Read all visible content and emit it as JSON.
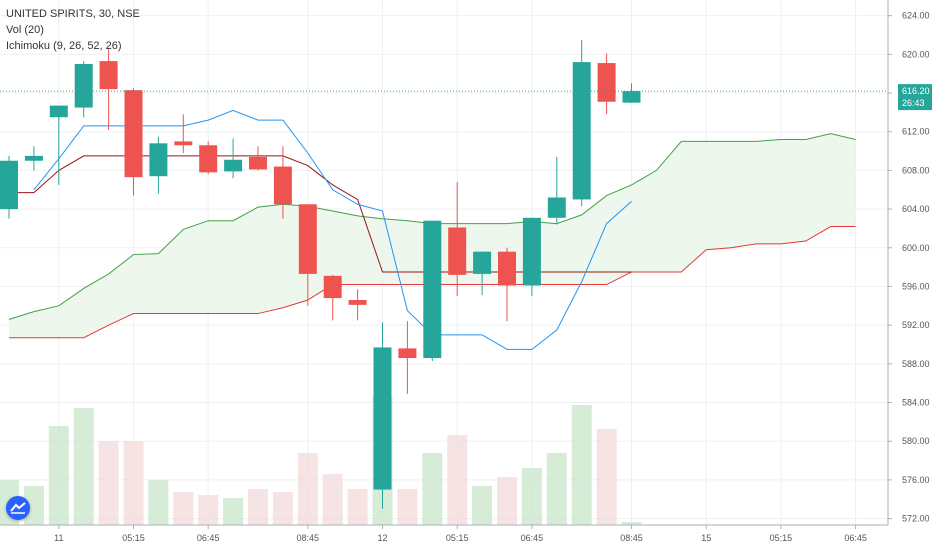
{
  "legend": {
    "symbol_line": "UNITED SPIRITS, 30, NSE",
    "vol_line": "Vol (20)",
    "ichimoku_line": "Ichimoku (9, 26, 52, 26)"
  },
  "icons": {
    "logo": "tradingview-logo-icon"
  },
  "colors": {
    "bull": "#26a69a",
    "bear": "#ef5350",
    "tenkan": "#2196f3",
    "kijun": "#991515",
    "spanA": "#43a047",
    "spanB": "#e53935",
    "cloud": "#e8f5e9",
    "current_price": "#26a69a"
  },
  "current_price": {
    "value": 616.2,
    "label": "616.20",
    "countdown": "26:43"
  },
  "chart_data": {
    "type": "candlestick",
    "title": "UNITED SPIRITS, 30, NSE",
    "ylim": [
      570.4,
      624.6
    ],
    "y_ticks": [
      "572.00",
      "576.00",
      "580.00",
      "584.00",
      "588.00",
      "592.00",
      "596.00",
      "600.00",
      "604.00",
      "608.00",
      "612.00",
      "616.00",
      "620.00",
      "624.00"
    ],
    "x_ticks": [
      {
        "label": "11",
        "bar": 2
      },
      {
        "label": "05:15",
        "bar": 5
      },
      {
        "label": "06:45",
        "bar": 8
      },
      {
        "label": "08:45",
        "bar": 12
      },
      {
        "label": "12",
        "bar": 15
      },
      {
        "label": "05:15",
        "bar": 18
      },
      {
        "label": "06:45",
        "bar": 21
      },
      {
        "label": "08:45",
        "bar": 25
      },
      {
        "label": "15",
        "bar": 28
      },
      {
        "label": "05:15",
        "bar": 31
      },
      {
        "label": "06:45",
        "bar": 34
      }
    ],
    "candles": [
      {
        "o": 604.0,
        "h": 609.5,
        "l": 603.0,
        "c": 609.0
      },
      {
        "o": 609.0,
        "h": 610.5,
        "l": 608.0,
        "c": 609.5
      },
      {
        "o": 613.5,
        "h": 614.7,
        "l": 606.5,
        "c": 614.7
      },
      {
        "o": 614.5,
        "h": 619.3,
        "l": 613.5,
        "c": 619.0
      },
      {
        "o": 619.3,
        "h": 620.7,
        "l": 612.2,
        "c": 616.4
      },
      {
        "o": 616.3,
        "h": 616.5,
        "l": 605.4,
        "c": 607.3
      },
      {
        "o": 607.4,
        "h": 611.5,
        "l": 605.6,
        "c": 610.8
      },
      {
        "o": 611.0,
        "h": 613.8,
        "l": 609.8,
        "c": 610.6
      },
      {
        "o": 610.6,
        "h": 611.0,
        "l": 607.6,
        "c": 607.8
      },
      {
        "o": 607.9,
        "h": 611.3,
        "l": 607.2,
        "c": 609.1
      },
      {
        "o": 609.4,
        "h": 610.5,
        "l": 608.0,
        "c": 608.1
      },
      {
        "o": 608.4,
        "h": 610.5,
        "l": 603.0,
        "c": 604.5
      },
      {
        "o": 604.5,
        "h": 604.5,
        "l": 594.0,
        "c": 597.3
      },
      {
        "o": 597.1,
        "h": 597.2,
        "l": 592.5,
        "c": 594.8
      },
      {
        "o": 594.6,
        "h": 595.7,
        "l": 592.5,
        "c": 594.1
      },
      {
        "o": 575.0,
        "h": 592.3,
        "l": 573.0,
        "c": 589.7
      },
      {
        "o": 589.6,
        "h": 592.4,
        "l": 584.9,
        "c": 588.6
      },
      {
        "o": 588.6,
        "h": 602.8,
        "l": 588.3,
        "c": 602.8
      },
      {
        "o": 602.1,
        "h": 606.8,
        "l": 595.0,
        "c": 597.2
      },
      {
        "o": 597.3,
        "h": 599.6,
        "l": 595.1,
        "c": 599.6
      },
      {
        "o": 599.6,
        "h": 600.0,
        "l": 592.4,
        "c": 596.1
      },
      {
        "o": 596.1,
        "h": 603.1,
        "l": 595.0,
        "c": 603.1
      },
      {
        "o": 603.1,
        "h": 609.4,
        "l": 602.4,
        "c": 605.2
      },
      {
        "o": 605.0,
        "h": 621.5,
        "l": 604.3,
        "c": 619.2
      },
      {
        "o": 619.1,
        "h": 620.1,
        "l": 613.8,
        "c": 615.1
      },
      {
        "o": 615.0,
        "h": 617.0,
        "l": 615.0,
        "c": 616.2
      }
    ],
    "volume": [
      15,
      13,
      33,
      39,
      28,
      28,
      15,
      11,
      10,
      9,
      12,
      11,
      24,
      17,
      12,
      43,
      12,
      24,
      30,
      13,
      16,
      19,
      24,
      40,
      32,
      1
    ],
    "ichimoku": {
      "tenkan": [
        [
          1,
          606.0
        ],
        [
          2,
          609.2
        ],
        [
          3,
          612.6
        ],
        [
          4,
          612.6
        ],
        [
          5,
          612.6
        ],
        [
          6,
          612.6
        ],
        [
          7,
          612.6
        ],
        [
          8,
          613.2
        ],
        [
          9,
          614.2
        ],
        [
          10,
          613.2
        ],
        [
          11,
          613.2
        ],
        [
          12,
          609.8
        ],
        [
          13,
          606.0
        ],
        [
          14,
          604.5
        ],
        [
          15,
          603.8
        ],
        [
          16,
          593.5
        ],
        [
          17,
          591.0
        ],
        [
          18,
          591.0
        ],
        [
          19,
          591.0
        ],
        [
          20,
          589.5
        ],
        [
          21,
          589.5
        ],
        [
          22,
          591.5
        ],
        [
          23,
          596.5
        ],
        [
          24,
          602.5
        ],
        [
          25,
          604.8
        ]
      ],
      "kijun": [
        [
          0,
          605.7
        ],
        [
          1,
          605.7
        ],
        [
          2,
          608.0
        ],
        [
          3,
          609.5
        ],
        [
          4,
          609.5
        ],
        [
          5,
          609.5
        ],
        [
          6,
          609.5
        ],
        [
          7,
          609.5
        ],
        [
          8,
          609.5
        ],
        [
          9,
          609.5
        ],
        [
          10,
          609.5
        ],
        [
          11,
          609.5
        ],
        [
          12,
          608.5
        ],
        [
          13,
          606.5
        ],
        [
          14,
          605.0
        ],
        [
          15,
          597.5
        ],
        [
          16,
          597.5
        ],
        [
          17,
          597.5
        ],
        [
          18,
          597.5
        ],
        [
          19,
          597.5
        ],
        [
          20,
          597.5
        ],
        [
          21,
          597.5
        ],
        [
          22,
          597.5
        ],
        [
          23,
          597.5
        ],
        [
          24,
          597.5
        ],
        [
          25,
          597.5
        ]
      ],
      "span_a": [
        [
          0,
          592.6
        ],
        [
          1,
          593.4
        ],
        [
          2,
          594.0
        ],
        [
          3,
          595.8
        ],
        [
          4,
          597.3
        ],
        [
          5,
          599.3
        ],
        [
          6,
          599.4
        ],
        [
          7,
          601.9
        ],
        [
          8,
          602.8
        ],
        [
          9,
          602.8
        ],
        [
          10,
          604.2
        ],
        [
          11,
          604.5
        ],
        [
          12,
          604.3
        ],
        [
          13,
          603.8
        ],
        [
          14,
          603.3
        ],
        [
          15,
          603.0
        ],
        [
          16,
          602.8
        ],
        [
          17,
          602.5
        ],
        [
          18,
          602.5
        ],
        [
          19,
          602.5
        ],
        [
          20,
          602.5
        ],
        [
          21,
          602.7
        ],
        [
          22,
          602.5
        ],
        [
          23,
          603.4
        ],
        [
          24,
          605.4
        ],
        [
          25,
          606.5
        ],
        [
          26,
          608.0
        ],
        [
          27,
          611.0
        ],
        [
          28,
          611.0
        ],
        [
          29,
          611.0
        ],
        [
          30,
          611.0
        ],
        [
          31,
          611.2
        ],
        [
          32,
          611.2
        ],
        [
          33,
          611.8
        ],
        [
          34,
          611.2
        ]
      ],
      "span_b": [
        [
          0,
          590.7
        ],
        [
          1,
          590.7
        ],
        [
          2,
          590.7
        ],
        [
          3,
          590.7
        ],
        [
          4,
          592.0
        ],
        [
          5,
          593.2
        ],
        [
          6,
          593.2
        ],
        [
          7,
          593.2
        ],
        [
          8,
          593.2
        ],
        [
          9,
          593.2
        ],
        [
          10,
          593.2
        ],
        [
          11,
          593.8
        ],
        [
          12,
          594.6
        ],
        [
          13,
          596.2
        ],
        [
          14,
          596.2
        ],
        [
          15,
          596.2
        ],
        [
          16,
          596.2
        ],
        [
          17,
          596.2
        ],
        [
          18,
          596.2
        ],
        [
          19,
          596.2
        ],
        [
          20,
          596.2
        ],
        [
          21,
          596.2
        ],
        [
          22,
          596.2
        ],
        [
          23,
          596.2
        ],
        [
          24,
          596.2
        ],
        [
          25,
          597.5
        ],
        [
          26,
          597.5
        ],
        [
          27,
          597.5
        ],
        [
          28,
          599.8
        ],
        [
          29,
          600.0
        ],
        [
          30,
          600.4
        ],
        [
          31,
          600.4
        ],
        [
          32,
          600.7
        ],
        [
          33,
          602.2
        ],
        [
          34,
          602.2
        ]
      ]
    }
  }
}
